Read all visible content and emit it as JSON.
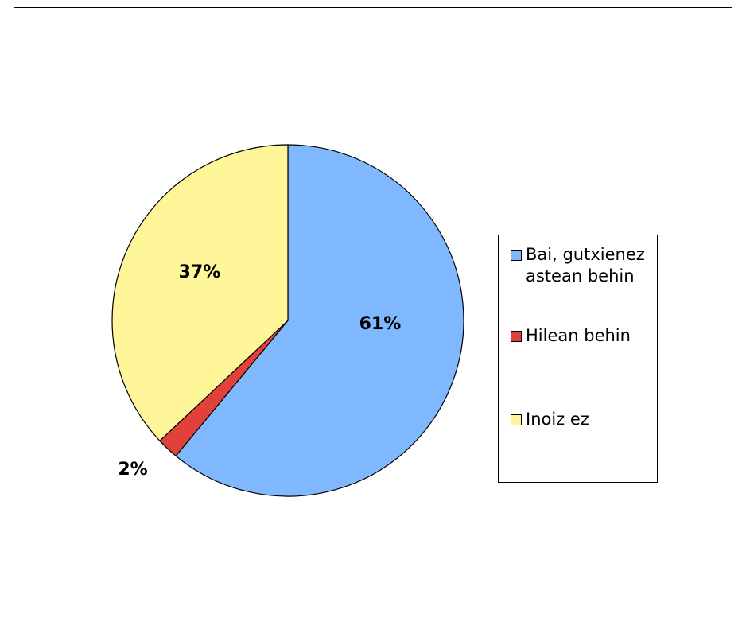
{
  "chart_data": {
    "type": "pie",
    "slices": [
      {
        "label": "Bai, gutxienez astean behin",
        "value": 61,
        "value_label": "61%",
        "color": "#80b8ff"
      },
      {
        "label": "Hilean behin",
        "value": 2,
        "value_label": "2%",
        "color": "#e0413a"
      },
      {
        "label": "Inoiz ez",
        "value": 37,
        "value_label": "37%",
        "color": "#fff599"
      }
    ],
    "start_angle": "12 o'clock",
    "direction": "clockwise",
    "legend_position": "right"
  }
}
